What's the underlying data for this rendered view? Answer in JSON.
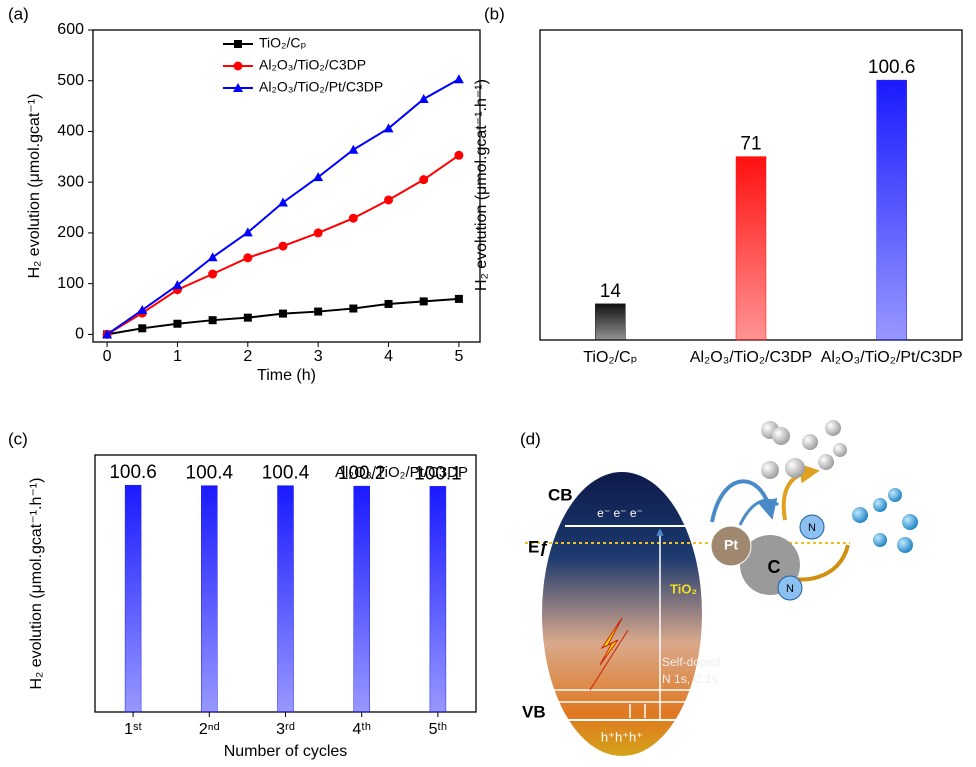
{
  "chart_data": [
    {
      "type": "line",
      "panel": "(a)",
      "xlabel": "Time (h)",
      "ylabel": "H₂ evolution (μmol.gcat⁻¹)",
      "x": [
        0,
        0.5,
        1,
        1.5,
        2,
        2.5,
        3,
        3.5,
        4,
        4.5,
        5
      ],
      "xlim": [
        -0.2,
        5.3
      ],
      "xticks": [
        0,
        1,
        2,
        3,
        4,
        5
      ],
      "ylim": [
        -15,
        600
      ],
      "yticks": [
        0,
        100,
        200,
        300,
        400,
        500,
        600
      ],
      "legend": "upper left",
      "series": [
        {
          "name": "TiO₂/Cₚ",
          "color": "#000000",
          "marker": "square",
          "values": [
            0,
            12,
            21,
            28,
            33,
            41,
            45,
            51,
            60,
            65,
            70
          ]
        },
        {
          "name": "Al₂O₃/TiO₂/C3DP",
          "color": "#ff0000",
          "marker": "circle",
          "values": [
            0,
            42,
            88,
            119,
            151,
            174,
            200,
            229,
            265,
            305,
            353
          ]
        },
        {
          "name": "Al₂O₃/TiO₂/Pt/C3DP",
          "color": "#0000ff",
          "marker": "triangle",
          "values": [
            0,
            48,
            97,
            152,
            201,
            260,
            310,
            364,
            406,
            464,
            503
          ]
        }
      ]
    },
    {
      "type": "bar",
      "panel": "(b)",
      "ylabel": "H₂ evolution (μmol.gcat⁻¹.h⁻¹)",
      "categories": [
        "TiO₂/Cₚ",
        "Al₂O₃/TiO₂/C3DP",
        "Al₂O₃/TiO₂/Pt/C3DP"
      ],
      "values": [
        14,
        71,
        100.6
      ],
      "colors": [
        "#111111",
        "#ff1010",
        "#1a1aff"
      ],
      "ylim": [
        0,
        120
      ]
    },
    {
      "type": "bar",
      "panel": "(c)",
      "xlabel": "Number of cycles",
      "ylabel": "H₂ evolution (μmol.gcat⁻¹.h⁻¹)",
      "annotation": "Al₂O₃/TiO₂/Pt/C3DP",
      "categories": [
        "1ˢᵗ",
        "2ⁿᵈ",
        "3ʳᵈ",
        "4ᵗʰ",
        "5ᵗʰ"
      ],
      "values": [
        100.6,
        100.4,
        100.4,
        100.2,
        100.1
      ],
      "color": "#1a1aff",
      "ylim": [
        0,
        114
      ]
    }
  ],
  "diagram": {
    "panel": "(d)",
    "cb": "CB",
    "vb": "VB",
    "ef": "Eƒ",
    "electrons": "e⁻ e⁻ e⁻",
    "holes": "h⁺h⁺h⁺",
    "tio2": "TiO₂",
    "self_doped": "Self-doped",
    "doping": "N 1s, C 1s",
    "pt": "Pt",
    "c": "C",
    "n1": "N",
    "n2": "N"
  }
}
